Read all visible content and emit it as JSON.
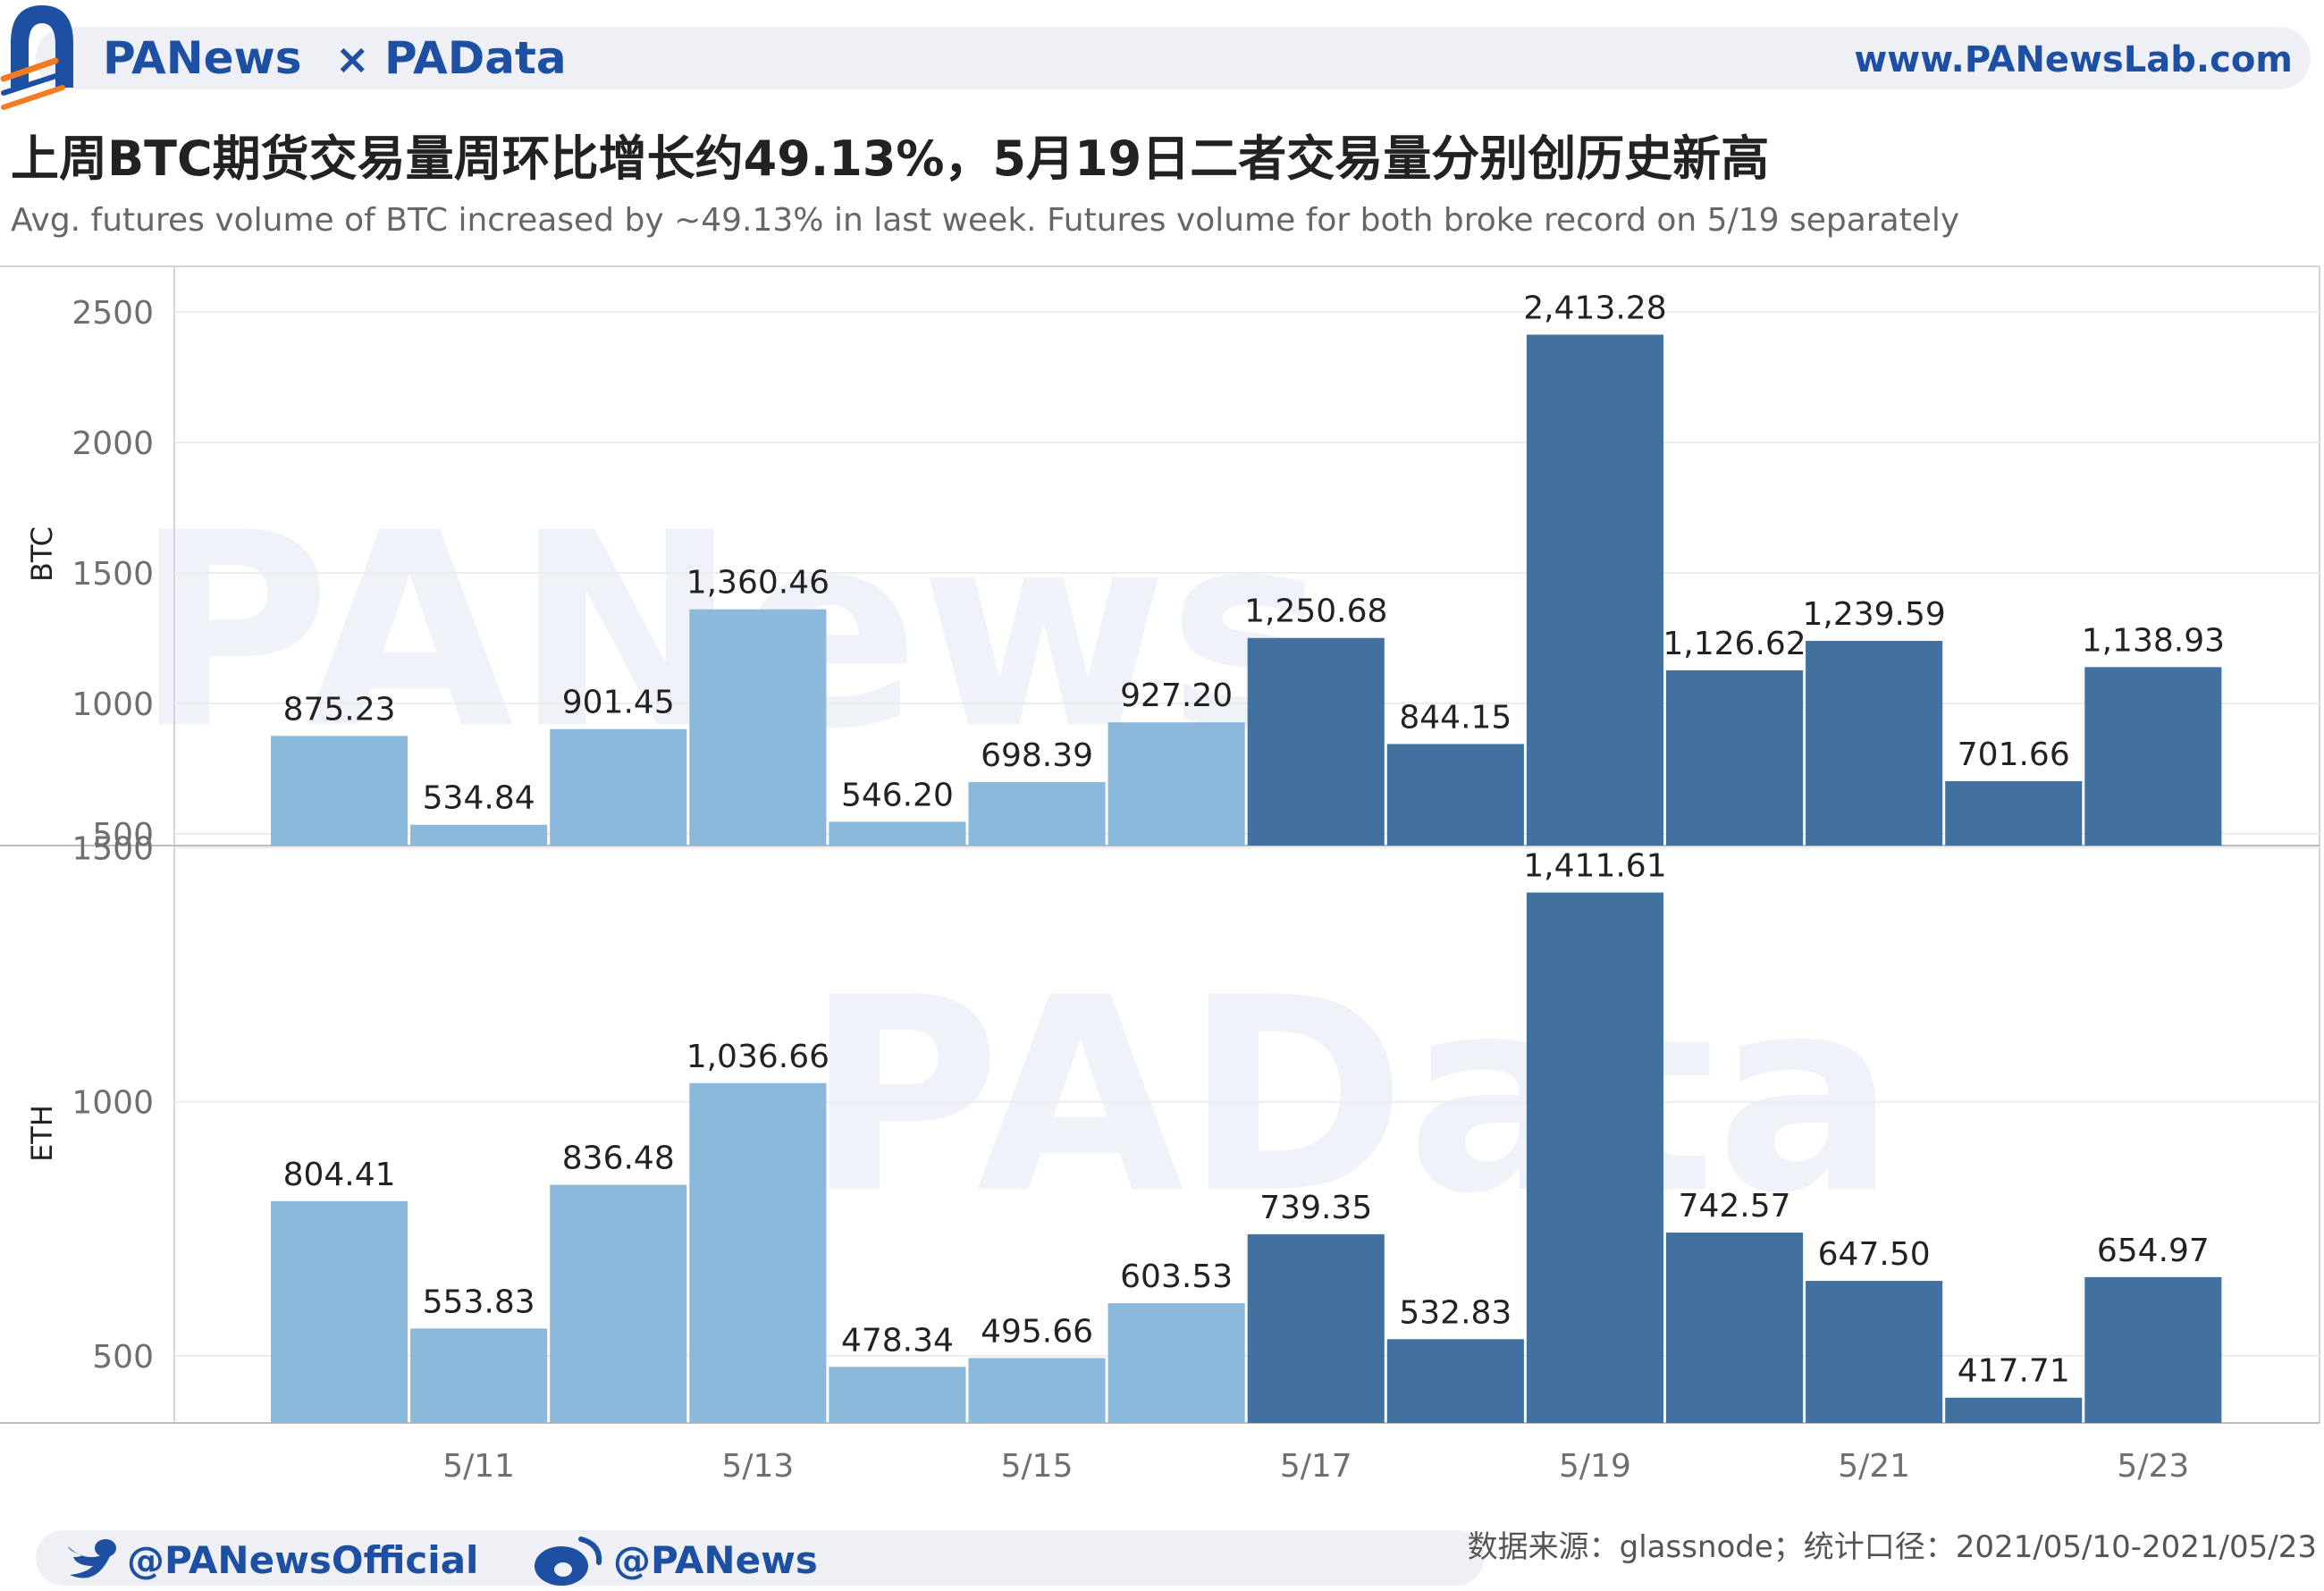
{
  "header": {
    "brand_left": "PANews",
    "brand_sep": "×",
    "brand_right": "PAData",
    "url": "www.PANewsLab.com"
  },
  "title": "上周BTC期货交易量周环比增长约49.13%，5月19日二者交易量分别创历史新高",
  "subtitle": "Avg. futures volume of BTC increased by ~49.13% in last week. Futures volume for both broke record on 5/19 separately",
  "footer": {
    "twitter": "@PANewsOfficial",
    "weibo": "@PANews",
    "source": "数据来源：glassnode；统计口径：2021/05/10-2021/05/23"
  },
  "watermarks": {
    "top": "PANews",
    "bottom": "PAData"
  },
  "colors": {
    "prev_week": "#8ab9dc",
    "this_week": "#4271a0",
    "brand_blue": "#1d4fa3",
    "brand_orange": "#f47b20"
  },
  "chart_data": {
    "type": "bar",
    "categories": [
      "5/10",
      "5/11",
      "5/12",
      "5/13",
      "5/14",
      "5/15",
      "5/16",
      "5/17",
      "5/18",
      "5/19",
      "5/20",
      "5/21",
      "5/22",
      "5/23"
    ],
    "x_tick_labels": [
      "5/11",
      "5/13",
      "5/15",
      "5/17",
      "5/19",
      "5/21",
      "5/23"
    ],
    "color_groups": [
      "prev_week",
      "prev_week",
      "prev_week",
      "prev_week",
      "prev_week",
      "prev_week",
      "prev_week",
      "this_week",
      "this_week",
      "this_week",
      "this_week",
      "this_week",
      "this_week",
      "this_week"
    ],
    "panels": [
      {
        "name": "BTC",
        "ylabel": "BTC",
        "yticks": [
          500,
          1000,
          1500,
          2000,
          2500
        ],
        "ylim": [
          455,
          2675
        ],
        "values": [
          875.23,
          534.84,
          901.45,
          1360.46,
          546.2,
          698.39,
          927.2,
          1250.68,
          844.15,
          2413.28,
          1126.62,
          1239.59,
          701.66,
          1138.93
        ],
        "labels": [
          "875.23",
          "534.84",
          "901.45",
          "1,360.46",
          "546.20",
          "698.39",
          "927.20",
          "1,250.68",
          "844.15",
          "2,413.28",
          "1,126.62",
          "1,239.59",
          "701.66",
          "1,138.93"
        ]
      },
      {
        "name": "ETH",
        "ylabel": "ETH",
        "yticks": [
          500,
          1000,
          1500
        ],
        "ylim": [
          368,
          1504
        ],
        "values": [
          804.41,
          553.83,
          836.48,
          1036.66,
          478.34,
          495.66,
          603.53,
          739.35,
          532.83,
          1411.61,
          742.57,
          647.5,
          417.71,
          654.97
        ],
        "labels": [
          "804.41",
          "553.83",
          "836.48",
          "1,036.66",
          "478.34",
          "495.66",
          "603.53",
          "739.35",
          "532.83",
          "1,411.61",
          "742.57",
          "647.50",
          "417.71",
          "654.97"
        ]
      }
    ],
    "grid": true,
    "legend": "none"
  }
}
